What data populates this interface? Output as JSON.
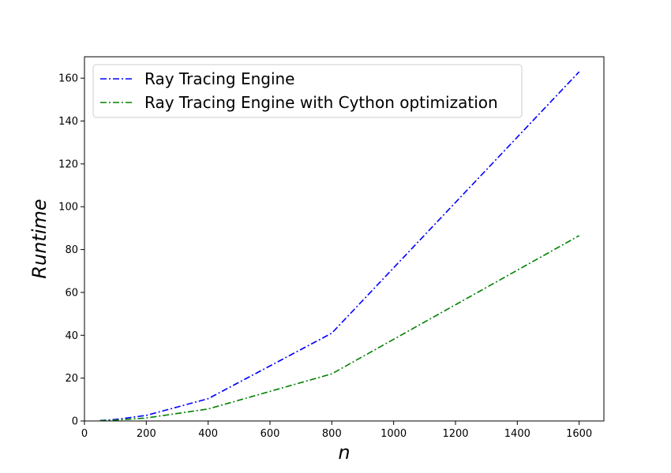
{
  "chart_data": {
    "type": "line",
    "title": "",
    "xlabel": "n",
    "ylabel": "Runtime",
    "xlim": [
      0,
      1680
    ],
    "ylim": [
      0,
      170
    ],
    "xticks": [
      0,
      200,
      400,
      600,
      800,
      1000,
      1200,
      1400,
      1600
    ],
    "yticks": [
      0,
      20,
      40,
      60,
      80,
      100,
      120,
      140,
      160
    ],
    "xtick_labels": [
      "0",
      "200",
      "400",
      "600",
      "800",
      "1000",
      "1200",
      "1400",
      "1600"
    ],
    "ytick_labels": [
      "0",
      "20",
      "40",
      "60",
      "80",
      "100",
      "120",
      "140",
      "160"
    ],
    "grid": false,
    "legend_position": "top-left",
    "series": [
      {
        "name": "Ray Tracing Engine",
        "color": "#0000ff",
        "line_style": "dash-dot",
        "x": [
          50,
          100,
          200,
          400,
          800,
          1600
        ],
        "y": [
          0.2,
          0.7,
          2.6,
          10.4,
          41.0,
          163.0
        ]
      },
      {
        "name": "Ray Tracing Engine with Cython optimization",
        "color": "#008000",
        "line_style": "dash-dot",
        "x": [
          50,
          100,
          200,
          400,
          800,
          1600
        ],
        "y": [
          0.1,
          0.4,
          1.4,
          5.6,
          22.0,
          86.5
        ]
      }
    ]
  }
}
